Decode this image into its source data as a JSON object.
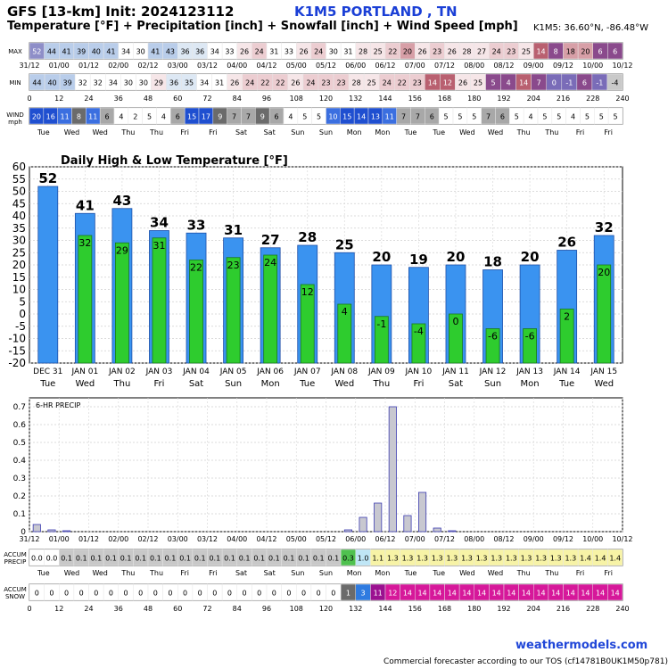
{
  "header": {
    "model_line": "GFS [13-km] Init: 2024123112",
    "site": "K1M5 PORTLAND      , TN",
    "subtitle": "Temperature [°F] + Precipitation [inch] + Snowfall [inch] + Wind Speed [mph]",
    "coords": "K1M5: 36.60°N, -86.48°W"
  },
  "time_axis": {
    "top_labels": [
      "31/12",
      "01/00",
      "01/12",
      "02/00",
      "02/12",
      "03/00",
      "03/12",
      "04/00",
      "04/12",
      "05/00",
      "05/12",
      "06/00",
      "06/12",
      "07/00",
      "07/12",
      "08/00",
      "08/12",
      "09/00",
      "09/12",
      "10/00",
      "10/12"
    ],
    "hour_labels": [
      "0",
      "+",
      "12",
      "24",
      "36",
      "48",
      "60",
      "72",
      "84",
      "96",
      "108",
      "120",
      "132",
      "144",
      "156",
      "168",
      "180",
      "192",
      "204",
      "216",
      "228",
      "240"
    ],
    "weekday_labels": [
      "Tue",
      "Wed",
      "Wed",
      "Thu",
      "Thu",
      "Fri",
      "Fri",
      "Sat",
      "Sat",
      "Sun",
      "Sun",
      "Mon",
      "Mon",
      "Tue",
      "Tue",
      "Wed",
      "Wed",
      "Thu",
      "Thu",
      "Fri",
      "Fri"
    ]
  },
  "strips": {
    "max_label": "MAX",
    "min_label": "MIN",
    "wind_label": "WIND",
    "wind_unit": "mph",
    "accum_precip_label": "ACCUM\nPRECIP",
    "accum_snow_label": "ACCUM\nSNOW",
    "max_values": [
      "52",
      "44",
      "41",
      "39",
      "40",
      "41",
      "34",
      "30",
      "41",
      "43",
      "36",
      "36",
      "34",
      "33",
      "26",
      "24",
      "31",
      "33",
      "26",
      "24",
      "30",
      "31",
      "28",
      "25",
      "22",
      "20",
      "26",
      "23",
      "26",
      "28",
      "27",
      "24",
      "23",
      "25",
      "14",
      "8",
      "18",
      "20",
      "6",
      "6"
    ],
    "min_values": [
      "44",
      "40",
      "39",
      "32",
      "32",
      "34",
      "30",
      "30",
      "29",
      "36",
      "35",
      "34",
      "31",
      "26",
      "24",
      "22",
      "22",
      "26",
      "24",
      "23",
      "23",
      "28",
      "25",
      "24",
      "22",
      "23",
      "14",
      "12",
      "26",
      "25",
      "5",
      "4",
      "14",
      "7",
      "0",
      "-1",
      "6",
      "-1",
      "-4"
    ],
    "wind_values": [
      "20",
      "16",
      "11",
      "8",
      "11",
      "6",
      "4",
      "2",
      "5",
      "4",
      "6",
      "15",
      "17",
      "9",
      "7",
      "7",
      "9",
      "6",
      "4",
      "5",
      "5",
      "10",
      "15",
      "14",
      "13",
      "11",
      "7",
      "7",
      "6",
      "5",
      "5",
      "5",
      "7",
      "6",
      "5",
      "4",
      "5",
      "5",
      "4",
      "5",
      "5",
      "5"
    ],
    "accum_precip_values": [
      "0.0",
      "0.0",
      "0.1",
      "0.1",
      "0.1",
      "0.1",
      "0.1",
      "0.1",
      "0.1",
      "0.1",
      "0.1",
      "0.1",
      "0.1",
      "0.1",
      "0.1",
      "0.1",
      "0.1",
      "0.1",
      "0.1",
      "0.1",
      "0.1",
      "0.3",
      "1.0",
      "1.1",
      "1.3",
      "1.3",
      "1.3",
      "1.3",
      "1.3",
      "1.3",
      "1.3",
      "1.3",
      "1.3",
      "1.3",
      "1.3",
      "1.3",
      "1.3",
      "1.4",
      "1.4",
      "1.4"
    ],
    "accum_snow_values": [
      "0",
      "0",
      "0",
      "0",
      "0",
      "0",
      "0",
      "0",
      "0",
      "0",
      "0",
      "0",
      "0",
      "0",
      "0",
      "0",
      "0",
      "0",
      "0",
      "0",
      "0",
      "1",
      "3",
      "11",
      "12",
      "14",
      "14",
      "14",
      "14",
      "14",
      "14",
      "14",
      "14",
      "14",
      "14",
      "14",
      "14",
      "14",
      "14",
      "14"
    ],
    "colors": {
      "warm_max": "#f2c9cc",
      "cold_deep": "#1f4fd0",
      "wind_dark": "#6b6b6b",
      "snow_magenta": "#d6189a",
      "precip_yellow": "#f7f3a6"
    }
  },
  "chart_data": [
    {
      "type": "bar",
      "title": "Daily High & Low Temperature [°F]",
      "categories": [
        "DEC 31",
        "JAN 01",
        "JAN 02",
        "JAN 03",
        "JAN 04",
        "JAN 05",
        "JAN 06",
        "JAN 07",
        "JAN 08",
        "JAN 09",
        "JAN 10",
        "JAN 11",
        "JAN 12",
        "JAN 13",
        "JAN 14",
        "JAN 15"
      ],
      "weekdays": [
        "Tue",
        "Wed",
        "Thu",
        "Fri",
        "Sat",
        "Sun",
        "Mon",
        "Tue",
        "Wed",
        "Thu",
        "Fri",
        "Sat",
        "Sun",
        "Mon",
        "Tue",
        "Wed"
      ],
      "series": [
        {
          "name": "High",
          "color": "#3a93f0",
          "values": [
            52,
            41,
            43,
            34,
            33,
            31,
            27,
            28,
            25,
            20,
            19,
            20,
            18,
            20,
            26,
            32
          ]
        },
        {
          "name": "Low",
          "color": "#2ecc2e",
          "values": [
            null,
            32,
            29,
            31,
            22,
            23,
            24,
            12,
            4,
            -1,
            -4,
            0,
            -6,
            -6,
            2,
            20
          ]
        }
      ],
      "ylim": [
        -20,
        60
      ],
      "yticks": [
        -20,
        -15,
        -10,
        -5,
        0,
        5,
        10,
        15,
        20,
        25,
        30,
        35,
        40,
        45,
        50,
        55,
        60
      ],
      "grid": true
    },
    {
      "type": "bar",
      "title": "6-HR PRECIP",
      "x_hours": [
        0,
        6,
        12,
        18,
        24,
        30,
        36,
        42,
        48,
        54,
        60,
        66,
        72,
        78,
        84,
        90,
        96,
        102,
        108,
        114,
        120,
        126,
        132,
        138,
        144,
        150,
        156,
        162,
        168,
        174,
        180,
        186,
        192,
        198,
        204,
        210,
        216,
        222,
        228,
        234
      ],
      "values": [
        0.04,
        0.01,
        0.005,
        0,
        0,
        0,
        0,
        0,
        0,
        0,
        0,
        0,
        0,
        0,
        0,
        0,
        0,
        0,
        0,
        0,
        0,
        0.01,
        0.08,
        0.16,
        0.7,
        0.09,
        0.22,
        0.02,
        0.005,
        0,
        0,
        0,
        0,
        0,
        0,
        0,
        0,
        0,
        0,
        0
      ],
      "ylim": [
        0,
        0.75
      ],
      "yticks": [
        "0",
        "0.1",
        "0.2",
        "0.3",
        "0.4",
        "0.5",
        "0.6",
        "0.7"
      ],
      "bar_color": "#c8c8d0",
      "grid": true
    }
  ],
  "footer": {
    "brand": "weathermodels.com",
    "note": "Commercial forecaster according to our TOS (cf14781B0UK1M50p781)"
  }
}
